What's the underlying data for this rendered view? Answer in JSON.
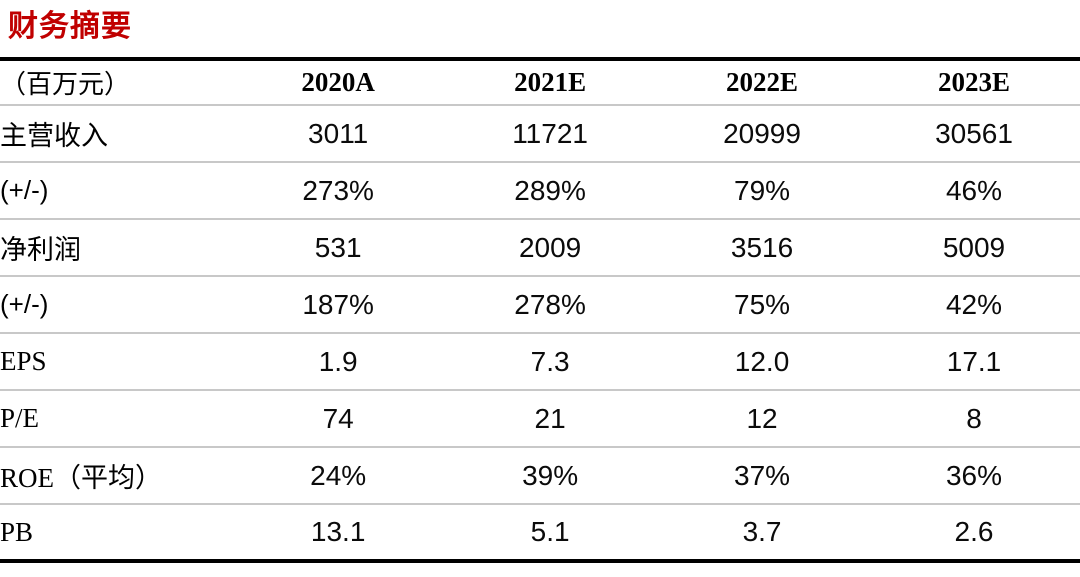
{
  "page": {
    "title": "财务摘要",
    "title_color": "#c00000"
  },
  "table": {
    "unit_header": "（百万元）",
    "columns": [
      "2020A",
      "2021E",
      "2022E",
      "2023E"
    ],
    "rows": [
      {
        "label": "主营收入",
        "values": [
          "3011",
          "11721",
          "20999",
          "30561"
        ]
      },
      {
        "label": "(+/-)",
        "values": [
          "273%",
          "289%",
          "79%",
          "46%"
        ]
      },
      {
        "label": "净利润",
        "values": [
          "531",
          "2009",
          "3516",
          "5009"
        ]
      },
      {
        "label": "(+/-)",
        "values": [
          "187%",
          "278%",
          "75%",
          "42%"
        ]
      },
      {
        "label": "EPS",
        "values": [
          "1.9",
          "7.3",
          "12.0",
          "17.1"
        ]
      },
      {
        "label": "P/E",
        "values": [
          "74",
          "21",
          "12",
          "8"
        ]
      },
      {
        "label": "ROE（平均）",
        "values": [
          "24%",
          "39%",
          "37%",
          "36%"
        ]
      },
      {
        "label": "PB",
        "values": [
          "13.1",
          "5.1",
          "3.7",
          "2.6"
        ]
      }
    ]
  },
  "chart_data": {
    "type": "table",
    "title": "财务摘要",
    "unit": "百万元",
    "categories": [
      "2020A",
      "2021E",
      "2022E",
      "2023E"
    ],
    "series": [
      {
        "name": "主营收入",
        "values": [
          3011,
          11721,
          20999,
          30561
        ]
      },
      {
        "name": "主营收入(+/-)",
        "values": [
          "273%",
          "289%",
          "79%",
          "46%"
        ]
      },
      {
        "name": "净利润",
        "values": [
          531,
          2009,
          3516,
          5009
        ]
      },
      {
        "name": "净利润(+/-)",
        "values": [
          "187%",
          "278%",
          "75%",
          "42%"
        ]
      },
      {
        "name": "EPS",
        "values": [
          1.9,
          7.3,
          12.0,
          17.1
        ]
      },
      {
        "name": "P/E",
        "values": [
          74,
          21,
          12,
          8
        ]
      },
      {
        "name": "ROE（平均）",
        "values": [
          "24%",
          "39%",
          "37%",
          "36%"
        ]
      },
      {
        "name": "PB",
        "values": [
          13.1,
          5.1,
          3.7,
          2.6
        ]
      }
    ]
  }
}
